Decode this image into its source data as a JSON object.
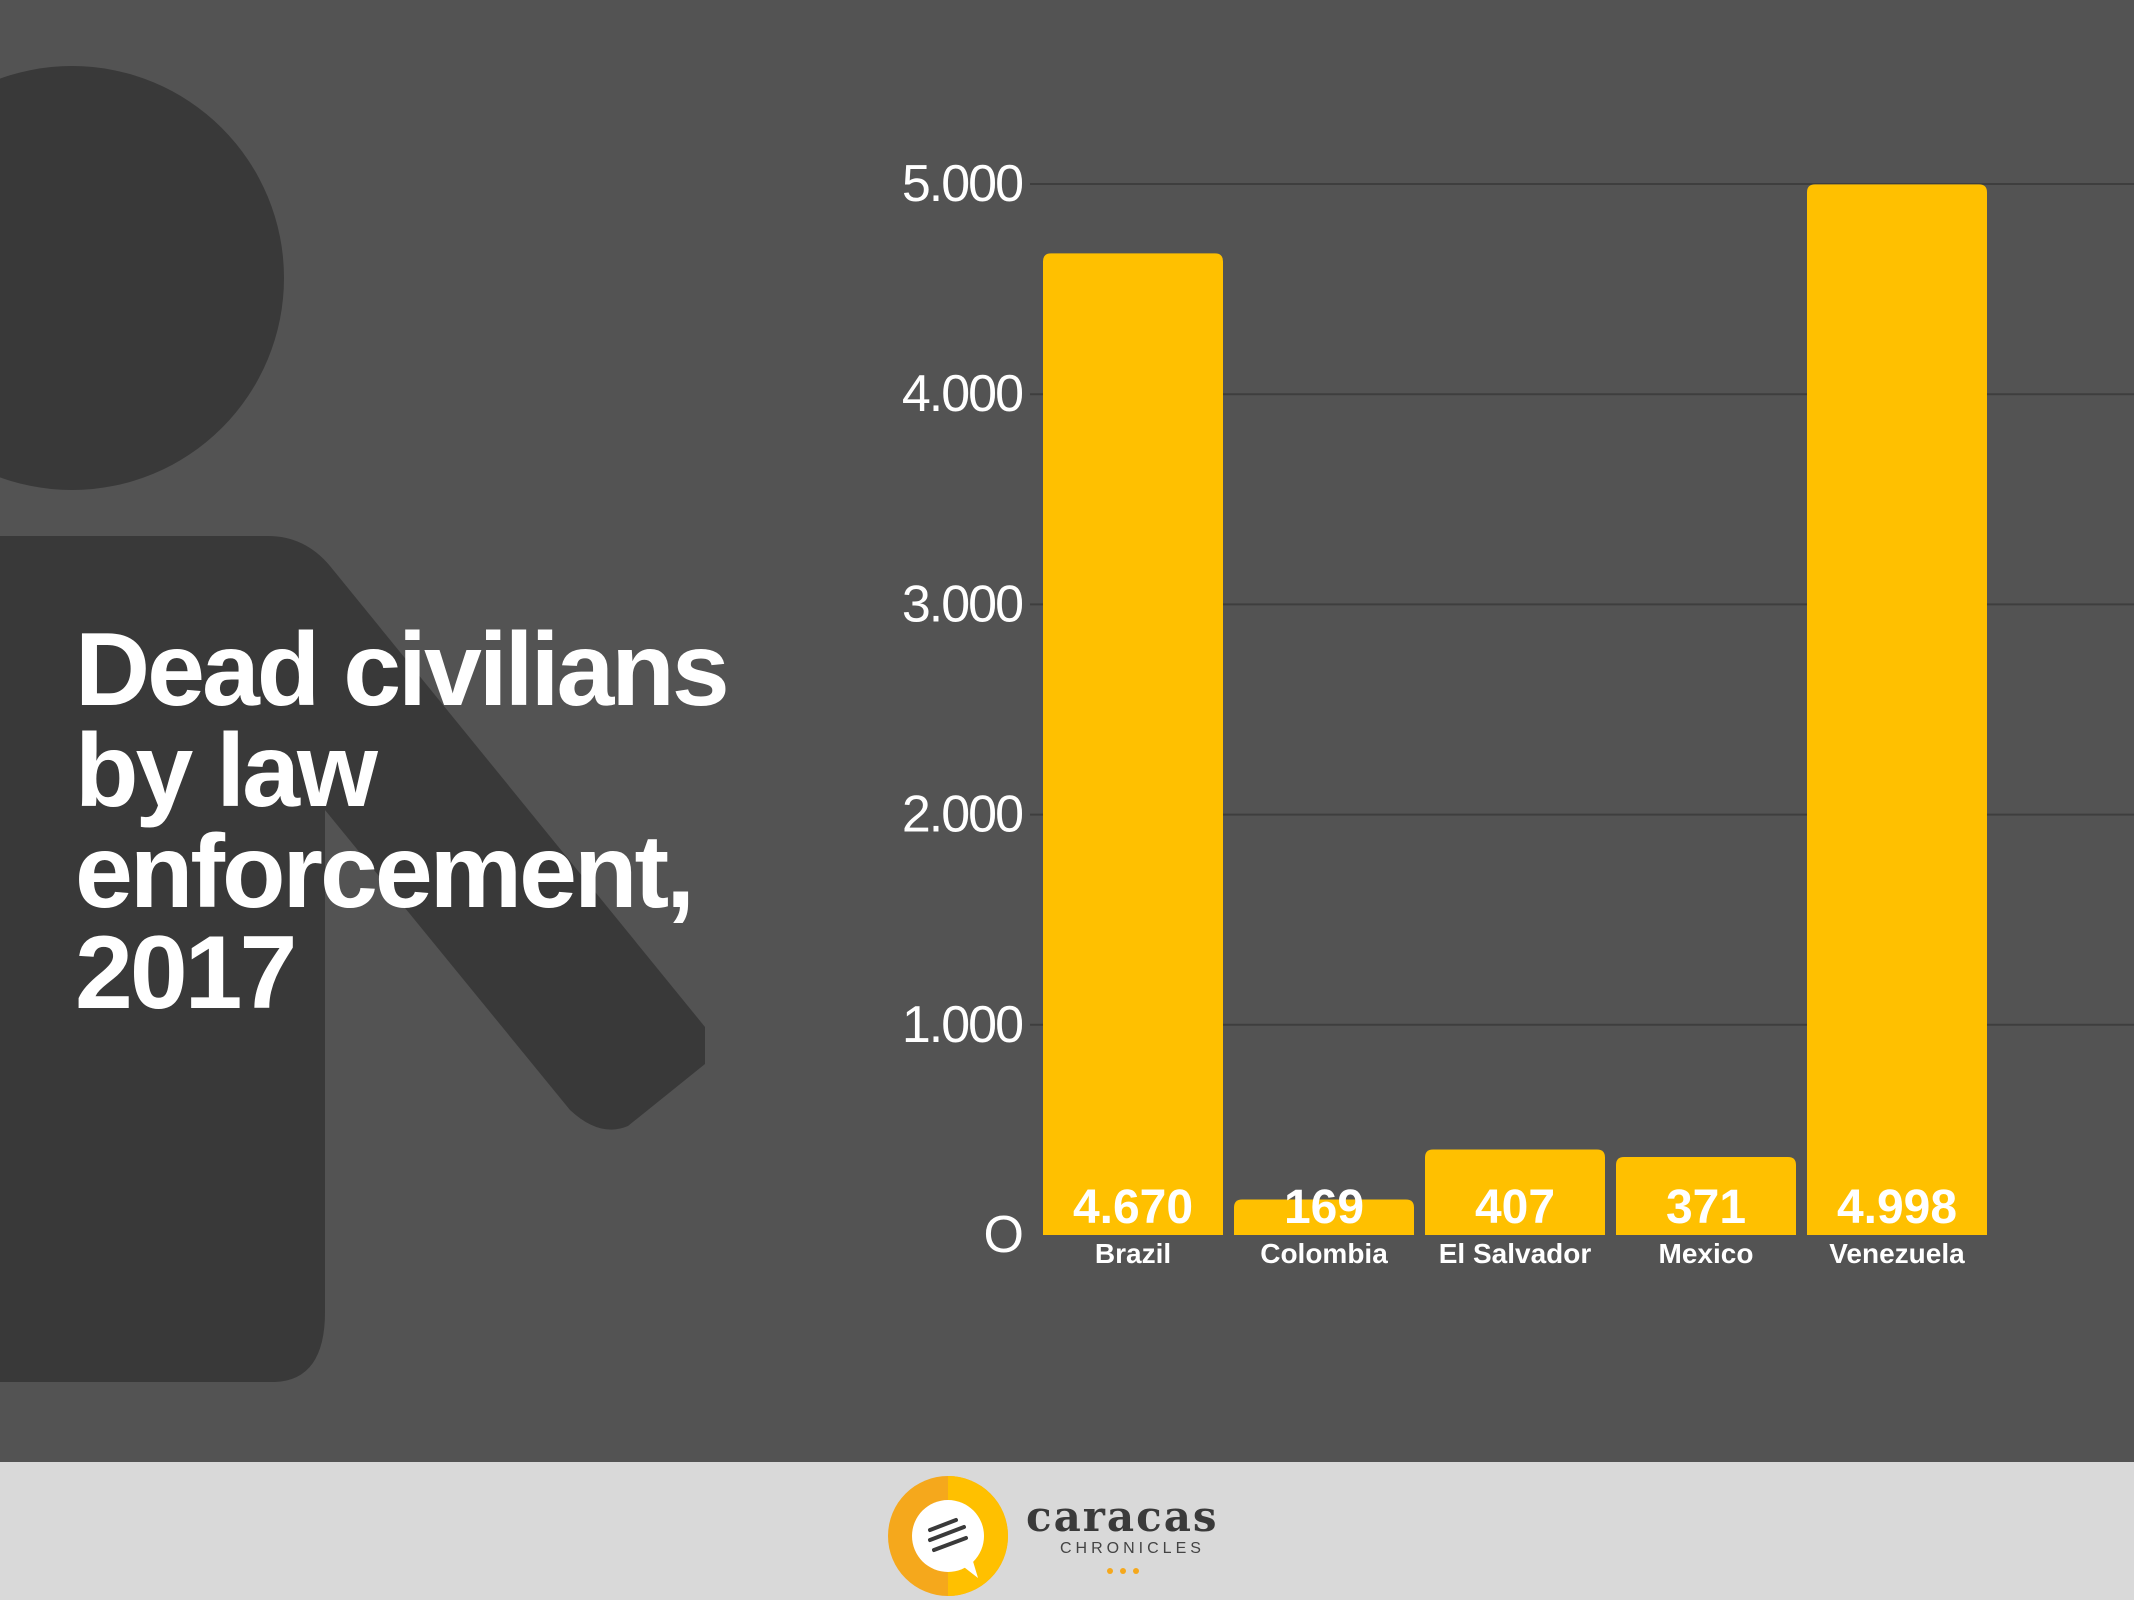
{
  "colors": {
    "background": "#535353",
    "figure": "#393939",
    "bar": "#ffc000",
    "text": "#ffffff",
    "footer": "#d9d9d9",
    "logo_orange": "#f5a81c"
  },
  "title": "Dead civilians by law enforcement, 2017",
  "chart_data": {
    "type": "bar",
    "title": "Dead civilians by law enforcement, 2017",
    "categories": [
      "Brazil",
      "Colombia",
      "El Salvador",
      "Mexico",
      "Venezuela"
    ],
    "values": [
      4670,
      169,
      407,
      371,
      4998
    ],
    "value_labels": [
      "4.670",
      "169",
      "407",
      "371",
      "4.998"
    ],
    "ylim": [
      0,
      5000
    ],
    "yticks": [
      0,
      1000,
      2000,
      3000,
      4000,
      5000
    ],
    "ytick_labels": [
      "O",
      "1.000",
      "2.000",
      "3.000",
      "4.000",
      "5.000"
    ],
    "grid": true,
    "xlabel": "",
    "ylabel": ""
  },
  "footer": {
    "brand": "caracas",
    "brand_sub": "CHRONICLES",
    "logo_icon": "speech-bubble-icon"
  }
}
